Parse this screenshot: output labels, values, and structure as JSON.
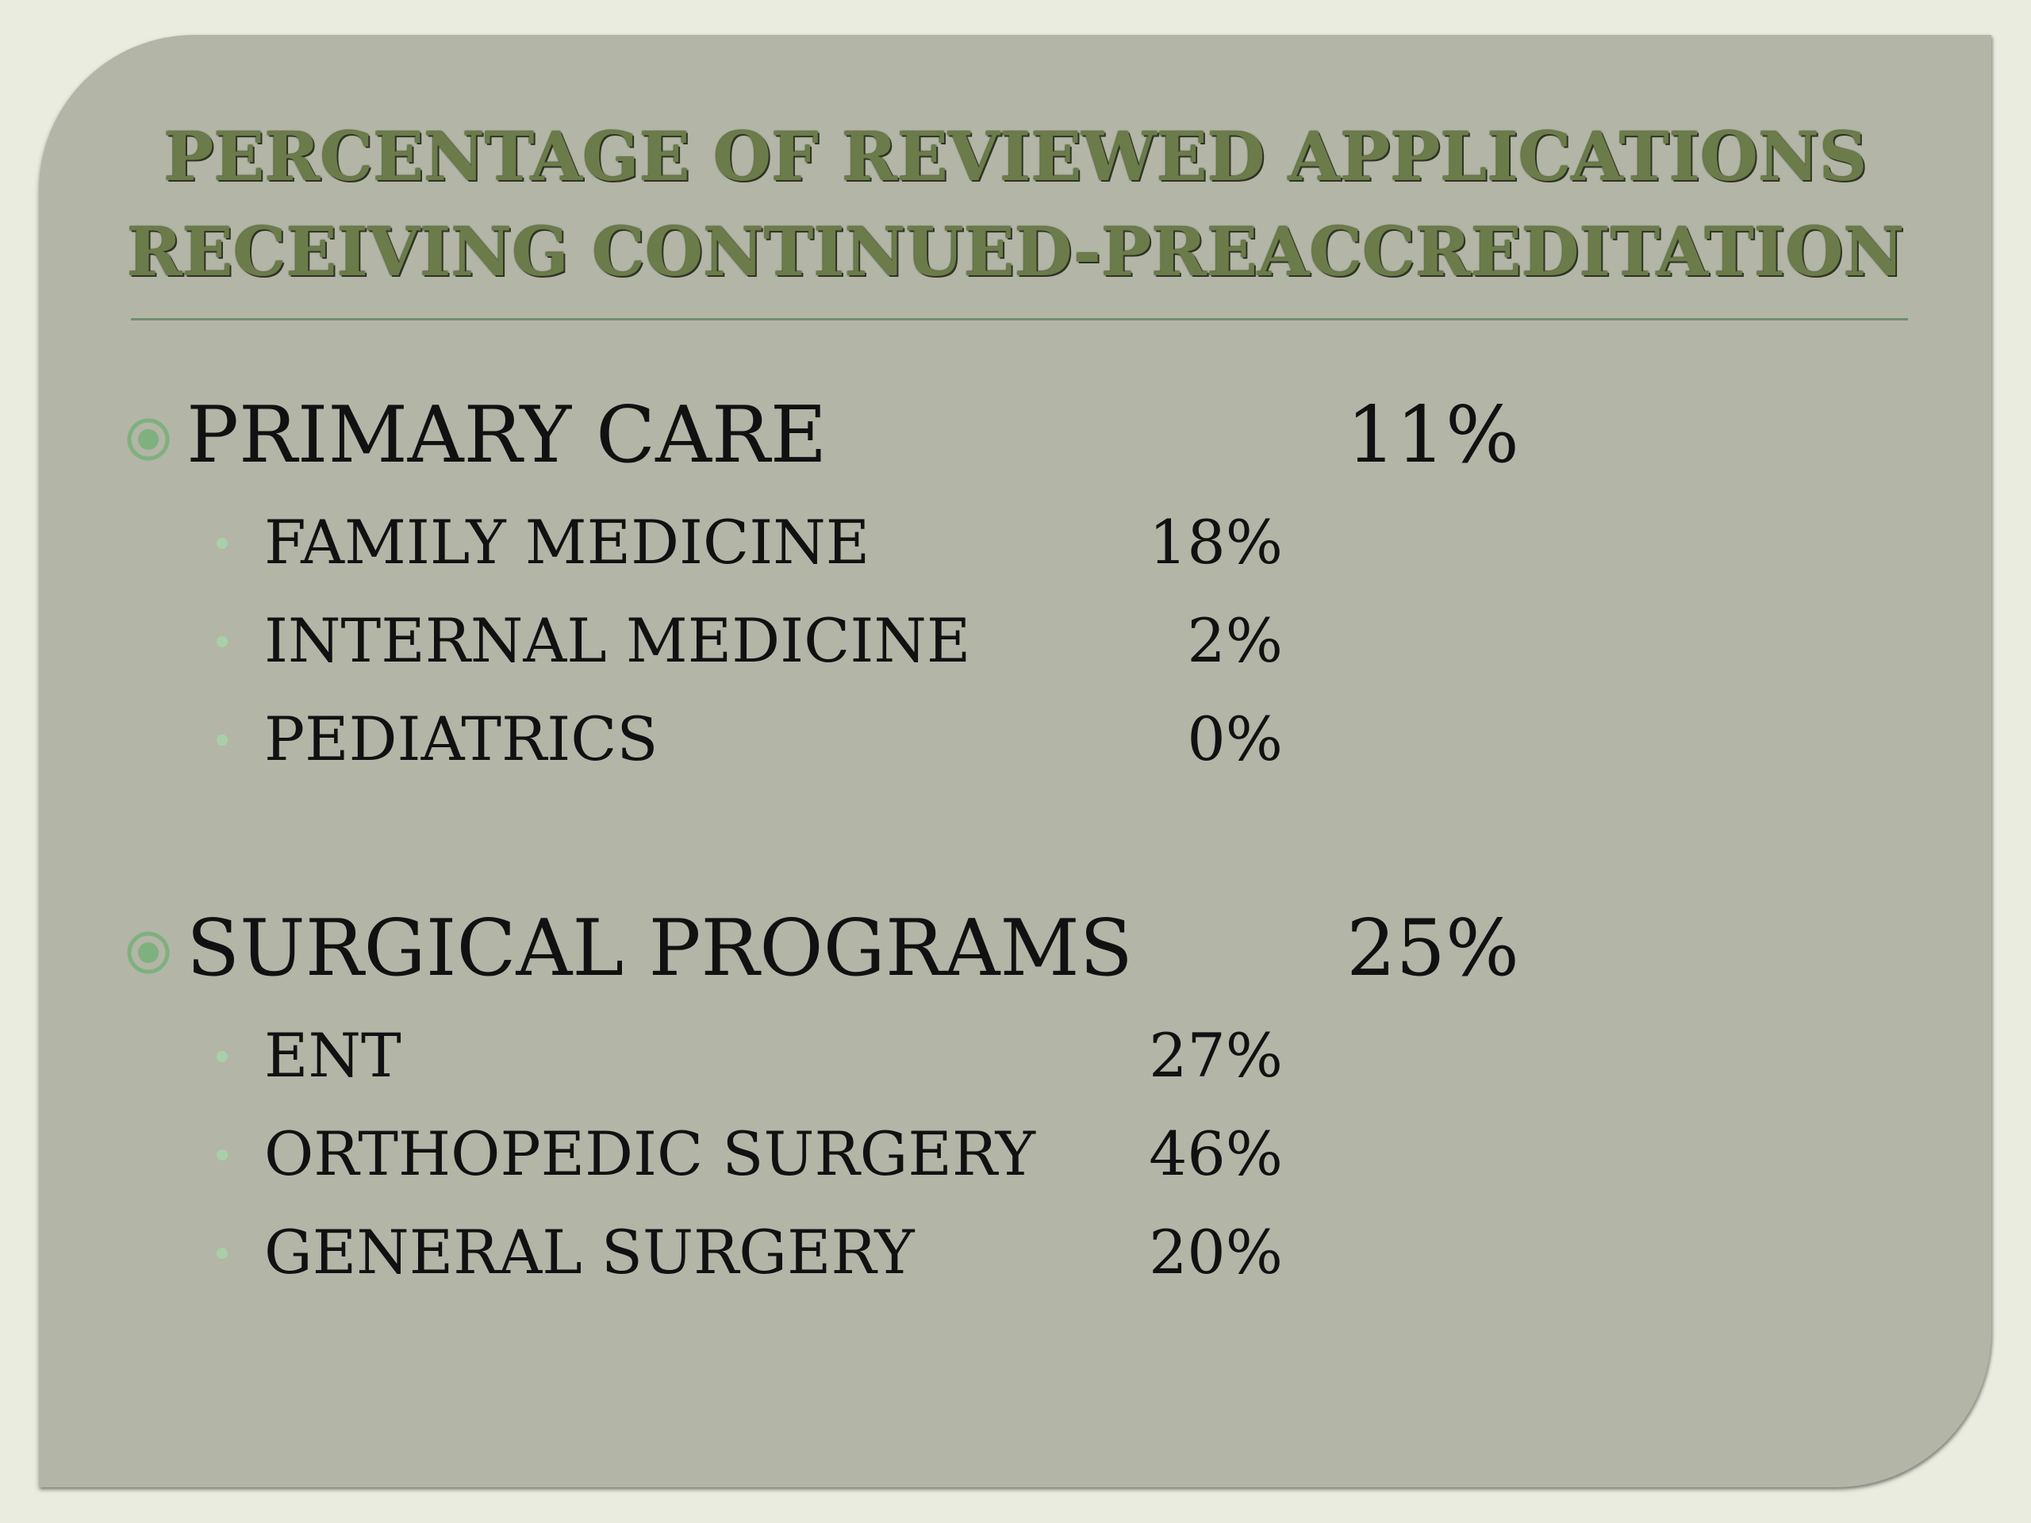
{
  "slide": {
    "title_lines": [
      "PERCENTAGE OF REVIEWED APPLICATIONS",
      "RECEIVING CONTINUED-PREACCREDITATION"
    ],
    "colors": {
      "background": "#e9ecdf",
      "panel": "#b3b5a7",
      "title": "#6b7b4a",
      "divider": "#6f8f6f",
      "bullet": "#7fb07f",
      "sub_bullet": "#a9cfa9",
      "text": "#111111"
    },
    "groups": [
      {
        "label": "PRIMARY CARE",
        "percent": "11%",
        "bullet_icon": "circled-dot-icon",
        "items": [
          {
            "label": "FAMILY MEDICINE",
            "percent": "18%"
          },
          {
            "label": "INTERNAL MEDICINE",
            "percent": "2%"
          },
          {
            "label": "PEDIATRICS",
            "percent": "0%"
          }
        ]
      },
      {
        "label": "SURGICAL PROGRAMS",
        "percent": "25%",
        "bullet_icon": "circled-dot-icon",
        "items": [
          {
            "label": "ENT",
            "percent": "27%"
          },
          {
            "label": "ORTHOPEDIC SURGERY",
            "percent": "46%"
          },
          {
            "label": "GENERAL SURGERY",
            "percent": "20%"
          }
        ]
      }
    ]
  }
}
